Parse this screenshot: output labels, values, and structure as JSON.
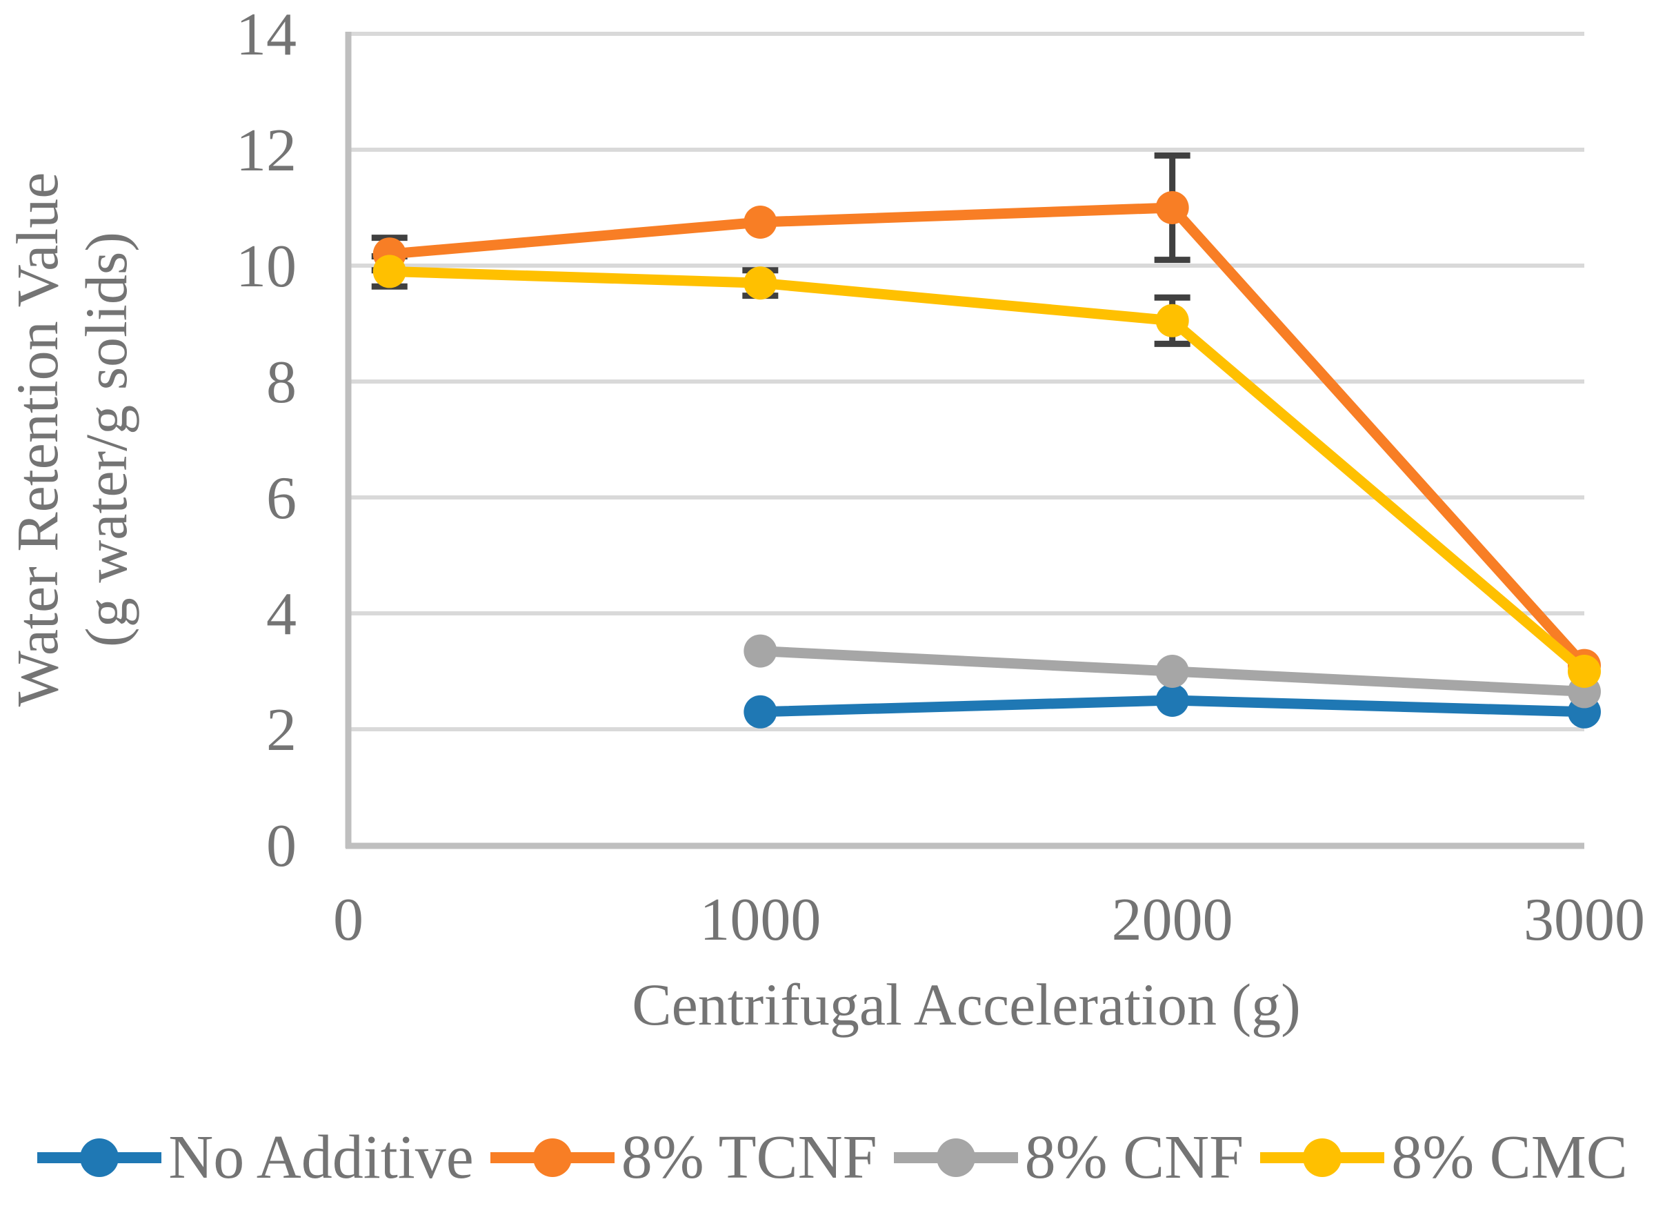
{
  "chart_data": {
    "type": "line",
    "title": "",
    "xlabel": "Centrifugal Acceleration (g)",
    "ylabel_lines": [
      "Water Retention Value",
      "(g water/g solids)"
    ],
    "xlim": [
      0,
      3000
    ],
    "ylim": [
      0,
      14
    ],
    "xticks": [
      0,
      1000,
      2000,
      3000
    ],
    "yticks": [
      0,
      2,
      4,
      6,
      8,
      10,
      12,
      14
    ],
    "grid": "horizontal-only",
    "legend_position": "bottom",
    "colors": {
      "gridline": "#D9D9D9",
      "axis_line": "#BFBFBF",
      "error_bar": "#404040",
      "text": "#747474"
    },
    "series": [
      {
        "name": "No Additive",
        "color": "#1F78B4",
        "x": [
          1000,
          2000,
          3000
        ],
        "y": [
          2.3,
          2.5,
          2.3
        ],
        "yerr": [
          null,
          null,
          null
        ]
      },
      {
        "name": "8% TCNF",
        "color": "#F87E25",
        "x": [
          100,
          1000,
          2000,
          3000
        ],
        "y": [
          10.2,
          10.75,
          11.0,
          3.1
        ],
        "yerr": [
          0.28,
          null,
          0.9,
          null
        ]
      },
      {
        "name": "8% CNF",
        "color": "#A6A6A6",
        "x": [
          1000,
          2000,
          3000
        ],
        "y": [
          3.35,
          3.0,
          2.65
        ],
        "yerr": [
          null,
          null,
          null
        ]
      },
      {
        "name": "8% CMC",
        "color": "#FFC000",
        "x": [
          100,
          1000,
          2000,
          3000
        ],
        "y": [
          9.9,
          9.7,
          9.05,
          3.0
        ],
        "yerr": [
          0.26,
          0.22,
          0.4,
          null
        ]
      }
    ]
  }
}
